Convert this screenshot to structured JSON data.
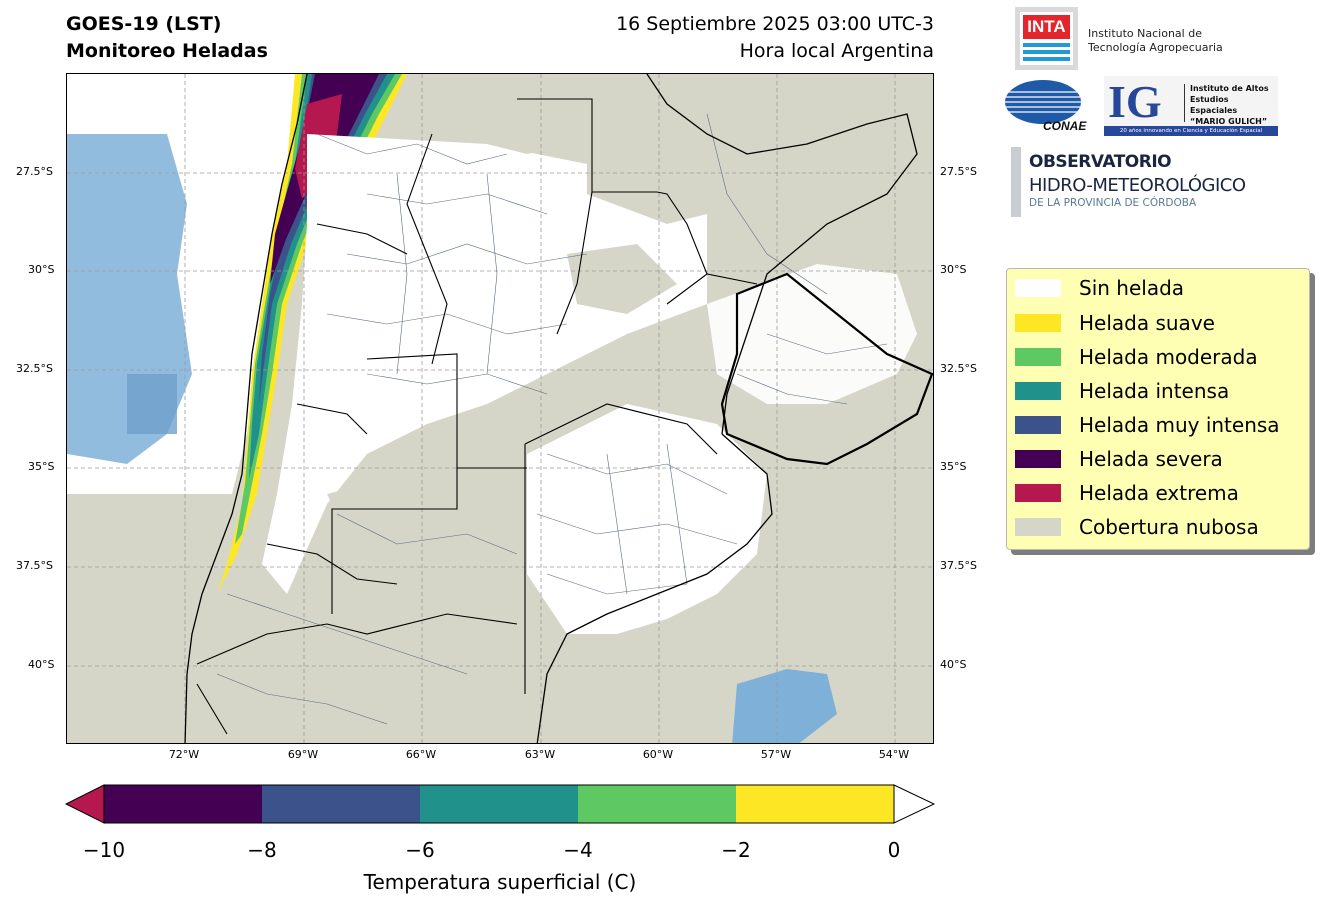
{
  "header": {
    "title_line1": "GOES-19 (LST)",
    "title_line2": "Monitoreo Heladas",
    "date_line1": "16 Septiembre 2025 03:00 UTC-3",
    "date_line2": "Hora local Argentina"
  },
  "map": {
    "lat_labels": [
      "27.5°S",
      "30°S",
      "32.5°S",
      "35°S",
      "37.5°S",
      "40°S"
    ],
    "lon_labels": [
      "72°W",
      "69°W",
      "66°W",
      "63°W",
      "60°W",
      "57°W",
      "54°W"
    ],
    "gridlines": "dashed",
    "colors": {
      "cloud": "#d6d6c8",
      "clear_land": "#ffffff",
      "water": "#7fb0d8",
      "boundary": "#000000",
      "dept_boundary": "#5b6b80"
    }
  },
  "legend": {
    "items": [
      {
        "label": "Sin helada",
        "color": "#ffffff"
      },
      {
        "label": "Helada suave",
        "color": "#fde725"
      },
      {
        "label": "Helada moderada",
        "color": "#5ec962"
      },
      {
        "label": "Helada intensa",
        "color": "#21918c"
      },
      {
        "label": "Helada muy intensa",
        "color": "#3b528b"
      },
      {
        "label": "Helada severa",
        "color": "#440154"
      },
      {
        "label": "Helada extrema",
        "color": "#b5174f"
      },
      {
        "label": "Cobertura nubosa",
        "color": "#d6d6c8"
      }
    ]
  },
  "colorbar": {
    "label": "Temperatura superficial (C)",
    "ticks": [
      "−10",
      "−8",
      "−6",
      "−4",
      "−2",
      "0"
    ],
    "segments": [
      {
        "from": -10,
        "to": -8,
        "color": "#440154"
      },
      {
        "from": -8,
        "to": -6,
        "color": "#3b528b"
      },
      {
        "from": -6,
        "to": -4,
        "color": "#21918c"
      },
      {
        "from": -4,
        "to": -2,
        "color": "#5ec962"
      },
      {
        "from": -2,
        "to": 0,
        "color": "#fde725"
      }
    ],
    "under_color": "#b5174f",
    "over_color": "#ffffff"
  },
  "logos": {
    "inta_mark": "INTA",
    "inta_name_line1": "Instituto Nacional de",
    "inta_name_line2": "Tecnología Agropecuaria",
    "conae": "CONAE",
    "ig_mark": "IG",
    "ig_name_line1": "Instituto de Altos",
    "ig_name_line2": "Estudios Espaciales",
    "ig_name_line3": "“MARIO GULICH”",
    "ig_tagline": "20 años innovando en Ciencia y Educación Espacial",
    "obs_line1": "OBSERVATORIO",
    "obs_line2": "HIDRO-METEOROLÓGICO",
    "obs_line3": "DE LA PROVINCIA DE CÓRDOBA"
  }
}
